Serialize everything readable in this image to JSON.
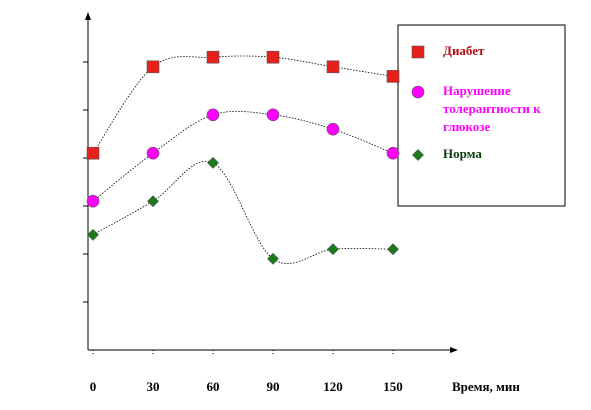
{
  "chart_data": {
    "type": "line",
    "x": [
      0,
      30,
      60,
      90,
      120,
      150
    ],
    "xticks": [
      0,
      30,
      60,
      90,
      120,
      150
    ],
    "xlabel": "Время, мин",
    "ylim": [
      0,
      7
    ],
    "yticks": [
      1,
      2,
      3,
      4,
      5,
      6
    ],
    "series": [
      {
        "name": "Диабет",
        "color": "#e8201c",
        "marker": "square",
        "values": [
          4.1,
          5.9,
          6.1,
          6.1,
          5.9,
          5.7
        ]
      },
      {
        "name": "Нарушение толерантности к глюкозе",
        "color": "#ff00ff",
        "marker": "circle",
        "values": [
          3.1,
          4.1,
          4.9,
          4.9,
          4.6,
          4.1
        ]
      },
      {
        "name": "Норма",
        "color": "#1b7a1b",
        "marker": "diamond",
        "values": [
          2.4,
          3.1,
          3.9,
          1.9,
          2.1,
          2.1
        ]
      }
    ]
  }
}
